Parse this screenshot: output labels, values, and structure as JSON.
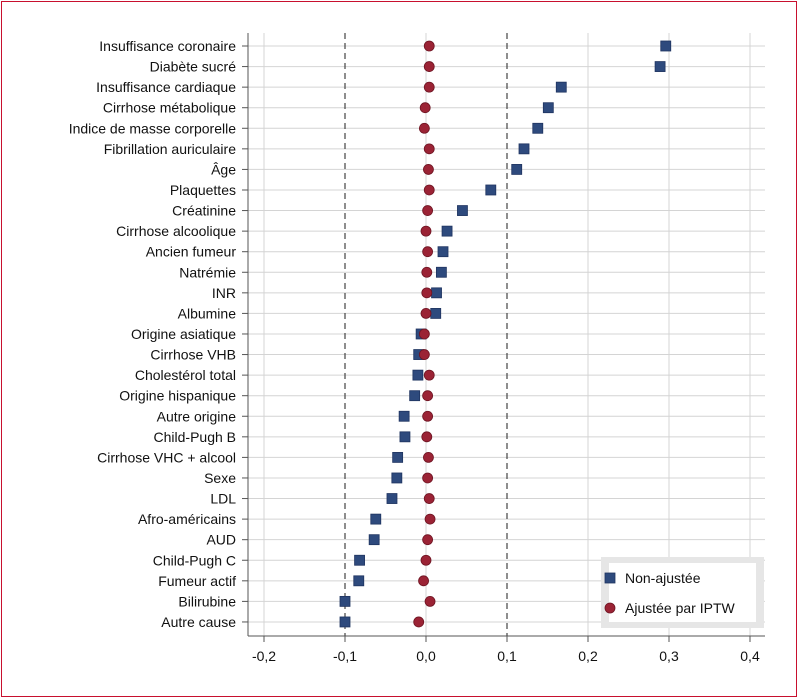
{
  "chart_data": {
    "type": "scatter",
    "xlim": [
      -0.2,
      0.4
    ],
    "x_ticks": [
      "-0,2",
      "-0,1",
      "0,0",
      "0,1",
      "0,2",
      "0,3",
      "0,4"
    ],
    "x_tick_values": [
      -0.2,
      -0.1,
      0.0,
      0.1,
      0.2,
      0.3,
      0.4
    ],
    "reference_lines": [
      -0.1,
      0.1
    ],
    "grid": true,
    "legend_position": "bottom-right",
    "categories": [
      "Insuffisance coronaire",
      "Diabète sucré",
      "Insuffisance cardiaque",
      "Cirrhose métabolique",
      "Indice de masse corporelle",
      "Fibrillation auriculaire",
      "Âge",
      "Plaquettes",
      "Créatinine",
      "Cirrhose alcoolique",
      "Ancien fumeur",
      "Natrémie",
      "INR",
      "Albumine",
      "Origine asiatique",
      "Cirrhose VHB",
      "Cholestérol total",
      "Origine hispanique",
      "Autre origine",
      "Child-Pugh B",
      "Cirrhose VHC + alcool",
      "Sexe",
      "LDL",
      "Afro-américains",
      "AUD",
      "Child-Pugh C",
      "Fumeur actif",
      "Bilirubine",
      "Autre cause"
    ],
    "series": [
      {
        "name": "Non-ajustée",
        "marker": "square",
        "color": "#2e4a7d",
        "values": [
          0.296,
          0.289,
          0.167,
          0.151,
          0.138,
          0.121,
          0.112,
          0.08,
          0.045,
          0.026,
          0.021,
          0.019,
          0.013,
          0.012,
          -0.006,
          -0.009,
          -0.01,
          -0.014,
          -0.027,
          -0.026,
          -0.035,
          -0.036,
          -0.042,
          -0.062,
          -0.064,
          -0.082,
          -0.083,
          -0.1,
          -0.1
        ]
      },
      {
        "name": "Ajustée par IPTW",
        "marker": "circle",
        "color": "#9b2335",
        "values": [
          0.004,
          0.004,
          0.004,
          -0.001,
          -0.002,
          0.004,
          0.003,
          0.004,
          0.002,
          0.0,
          0.002,
          0.001,
          0.001,
          0.0,
          -0.002,
          -0.002,
          0.004,
          0.002,
          0.002,
          0.001,
          0.003,
          0.002,
          0.004,
          0.005,
          0.002,
          0.0,
          -0.003,
          0.005,
          -0.009
        ]
      }
    ]
  },
  "legend": {
    "items": [
      {
        "label": "Non-ajustée",
        "marker": "square",
        "color": "#2e4a7d"
      },
      {
        "label": "Ajustée par IPTW",
        "marker": "circle",
        "color": "#9b2335"
      }
    ]
  }
}
